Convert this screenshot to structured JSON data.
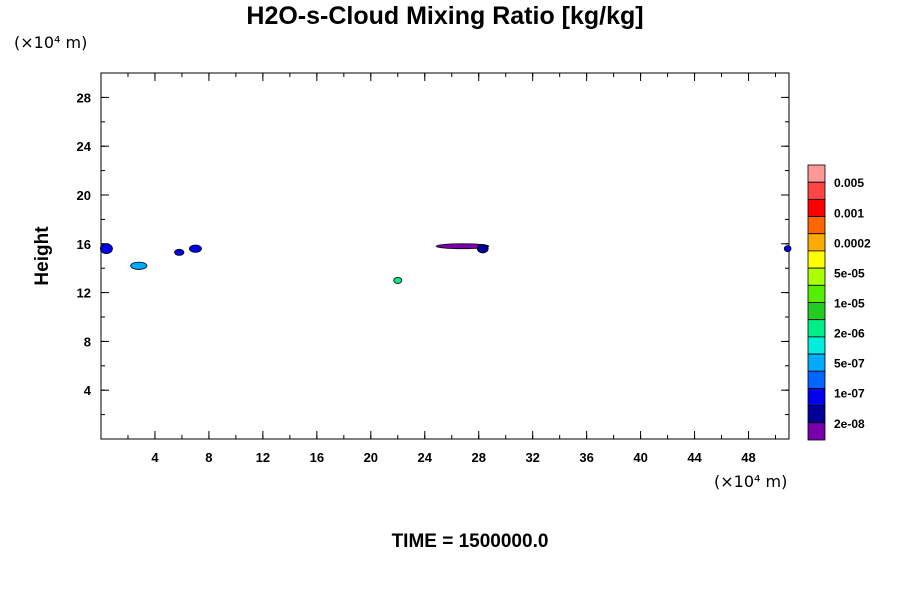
{
  "chart_data": {
    "type": "contour",
    "title": "H2O-s-Cloud Mixing Ratio [kg/kg]",
    "xlabel": "",
    "ylabel": "Height",
    "x_unit": "(×10⁴ m)",
    "y_unit": "(×10⁴ m)",
    "xlim": [
      0,
      51
    ],
    "ylim": [
      0,
      30
    ],
    "x_ticks": [
      4,
      8,
      12,
      16,
      20,
      24,
      28,
      32,
      36,
      40,
      44,
      48
    ],
    "y_ticks": [
      4,
      8,
      12,
      16,
      20,
      24,
      28
    ],
    "colorbar": {
      "labels": [
        "0.005",
        "0.001",
        "0.0002",
        "5e-05",
        "1e-05",
        "2e-06",
        "5e-07",
        "1e-07",
        "2e-08"
      ],
      "colors": [
        "#ff9999",
        "#ff4444",
        "#ff0000",
        "#ff6600",
        "#ffaa00",
        "#ffff00",
        "#aaff00",
        "#55ee00",
        "#22cc22",
        "#00ee88",
        "#00eedd",
        "#00aaff",
        "#0066ff",
        "#0000ee",
        "#000099",
        "#7700aa"
      ]
    },
    "features": [
      {
        "name": "blob-a",
        "x": 0.4,
        "y": 15.6,
        "w": 0.9,
        "h": 0.8,
        "color": "#0000ee"
      },
      {
        "name": "blob-b",
        "x": 2.8,
        "y": 14.2,
        "w": 1.2,
        "h": 0.6,
        "color": "#00aaff"
      },
      {
        "name": "blob-c",
        "x": 5.8,
        "y": 15.3,
        "w": 0.7,
        "h": 0.5,
        "color": "#0000ee"
      },
      {
        "name": "blob-d",
        "x": 7.0,
        "y": 15.6,
        "w": 0.9,
        "h": 0.6,
        "color": "#0000ee"
      },
      {
        "name": "blob-e",
        "x": 22.0,
        "y": 13.0,
        "w": 0.6,
        "h": 0.5,
        "color": "#00ee88"
      },
      {
        "name": "blob-f",
        "x": 26.8,
        "y": 15.8,
        "w": 3.9,
        "h": 0.4,
        "color": "#7700aa"
      },
      {
        "name": "blob-g",
        "x": 28.3,
        "y": 15.6,
        "w": 0.8,
        "h": 0.7,
        "color": "#000099"
      },
      {
        "name": "blob-h",
        "x": 50.9,
        "y": 15.6,
        "w": 0.5,
        "h": 0.5,
        "color": "#0000ee"
      }
    ]
  },
  "footer": {
    "time_label": "TIME = 1500000.0"
  }
}
